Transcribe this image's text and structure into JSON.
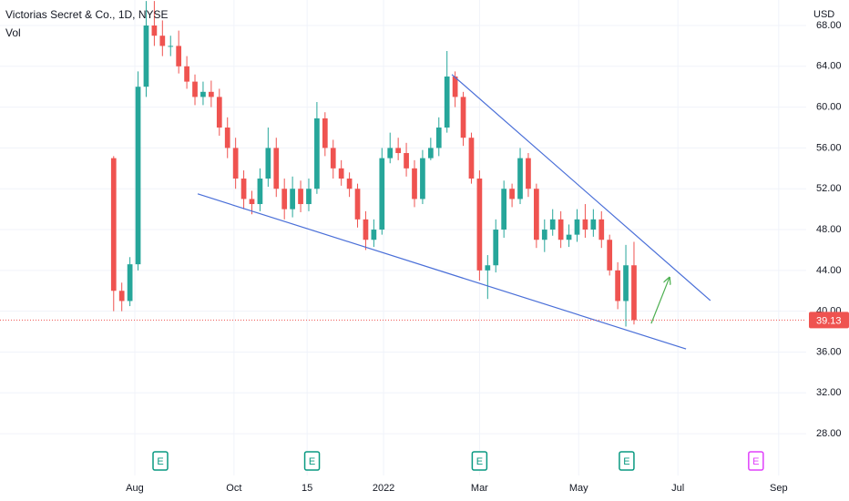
{
  "chart_data": {
    "type": "candlestick",
    "title": "Victorias Secret & Co., 1D, NYSE",
    "subtitle": "Vol",
    "currency": "USD",
    "up_color": "#26a69a",
    "down_color": "#ef5350",
    "grid": true,
    "x": [
      18,
      23,
      28,
      33,
      38,
      43,
      48,
      53,
      58,
      63,
      68,
      73,
      78,
      83,
      88,
      93,
      98,
      103,
      108,
      113,
      118,
      123,
      128,
      133,
      138,
      143,
      148,
      153,
      158,
      163,
      168,
      173,
      178,
      183,
      188,
      193,
      198,
      203,
      208,
      213,
      218,
      223,
      228,
      233,
      238,
      243,
      248,
      253,
      258,
      263,
      268,
      273,
      278,
      283,
      288,
      293,
      298,
      303,
      308,
      313,
      318,
      323,
      328,
      333,
      338
    ],
    "open": [
      55,
      42,
      41,
      44.6,
      62,
      68,
      67,
      66,
      66,
      64,
      62.5,
      61,
      61.5,
      61,
      58,
      56,
      53,
      51,
      50.5,
      53,
      56,
      52,
      50,
      52,
      50.5,
      52,
      58.9,
      56,
      54,
      53,
      52,
      49,
      47,
      48,
      55,
      56,
      55.5,
      54,
      51,
      55,
      56,
      58,
      63,
      61,
      57,
      53,
      44,
      44.5,
      48,
      52,
      51,
      55,
      52,
      47,
      48,
      49,
      47,
      47.5,
      49,
      48,
      49,
      47,
      44,
      41,
      44.5
    ],
    "high": [
      55.2,
      42.8,
      45.3,
      63.5,
      70.4,
      70.4,
      68.5,
      67,
      67.5,
      65,
      63.2,
      62.5,
      62.6,
      61.8,
      59,
      57,
      53.8,
      51.8,
      54,
      58,
      57,
      53,
      53.2,
      52.8,
      53,
      60.5,
      59.5,
      56.8,
      54.8,
      53.6,
      52.5,
      49.8,
      49,
      56,
      57.5,
      57,
      56.5,
      54.8,
      55.8,
      57,
      59,
      65.5,
      63.5,
      61.5,
      57.5,
      53.8,
      45.5,
      49,
      52.8,
      52.5,
      56,
      55.5,
      52.5,
      49,
      50,
      49.8,
      48.5,
      50,
      50.5,
      50,
      49.8,
      47.5,
      44.8,
      46.5,
      46.8
    ],
    "low": [
      40,
      40,
      40.5,
      44,
      61,
      66,
      65,
      65,
      63.3,
      61.8,
      60.2,
      60.2,
      60,
      57.2,
      55,
      52,
      50,
      49.5,
      49.8,
      52.2,
      51.2,
      49,
      49.2,
      49.7,
      49.8,
      51.5,
      55.2,
      53,
      52.3,
      51.2,
      48.2,
      46,
      46.3,
      47.5,
      54.5,
      54.8,
      53.2,
      50.2,
      50.5,
      54.8,
      55.2,
      57.5,
      60,
      56.2,
      52.5,
      43,
      41.2,
      43.8,
      47.2,
      50.2,
      50.5,
      51.2,
      46.2,
      45.8,
      47.4,
      46.2,
      46.3,
      46.8,
      47.2,
      47.3,
      46.2,
      43.5,
      40.2,
      38.5,
      38.7
    ],
    "close": [
      42,
      41,
      44.6,
      62,
      68,
      67,
      66,
      66,
      64,
      62.5,
      61,
      61.5,
      61,
      58,
      56,
      53,
      51,
      50.5,
      53,
      56,
      52,
      50,
      52,
      50.5,
      52,
      58.9,
      56,
      54,
      53,
      52,
      49,
      47,
      48,
      55,
      56,
      55.5,
      54,
      51,
      55,
      56,
      58,
      63,
      61,
      57,
      53,
      44,
      44.5,
      48,
      52,
      51,
      55,
      52,
      47,
      48,
      49,
      47,
      47.5,
      49,
      48,
      49,
      47,
      44,
      41,
      44.5,
      39.13
    ],
    "last_price": 39.13,
    "xlim": [
      -51.9,
      443.9
    ],
    "ylim": [
      23.9,
      70.5
    ],
    "xticks": [
      {
        "value": 31,
        "label": "Aug"
      },
      {
        "value": 92,
        "label": "Oct"
      },
      {
        "value": 137,
        "label": "15"
      },
      {
        "value": 184,
        "label": "2022"
      },
      {
        "value": 243,
        "label": "Mar"
      },
      {
        "value": 304,
        "label": "May"
      },
      {
        "value": 365,
        "label": "Jul"
      },
      {
        "value": 427,
        "label": "Sep"
      }
    ],
    "yticks": [
      {
        "value": 28,
        "label": "28.00"
      },
      {
        "value": 32,
        "label": "32.00"
      },
      {
        "value": 36,
        "label": "36.00"
      },
      {
        "value": 40,
        "label": "40.00"
      },
      {
        "value": 44,
        "label": "44.00"
      },
      {
        "value": 48,
        "label": "48.00"
      },
      {
        "value": 52,
        "label": "52.00"
      },
      {
        "value": 56,
        "label": "56.00"
      },
      {
        "value": 60,
        "label": "60.00"
      },
      {
        "value": 64,
        "label": "64.00"
      },
      {
        "value": 68,
        "label": "68.00"
      }
    ],
    "drawings": [
      {
        "x": [
          226,
          385
        ],
        "y": [
          63.2,
          41.05
        ],
        "color": "#4a6fd8"
      },
      {
        "x": [
          69.7,
          370
        ],
        "y": [
          51.5,
          36.3
        ],
        "color": "#4a6fd8"
      },
      {
        "x": [
          348.6,
          359.8
        ],
        "y": [
          38.8,
          43.3
        ],
        "color": "#4caf50",
        "arrow": true
      }
    ],
    "events": [
      {
        "x": 46.7,
        "label": "E",
        "color": "#089981"
      },
      {
        "x": 140,
        "label": "E",
        "color": "#089981"
      },
      {
        "x": 243,
        "label": "E",
        "color": "#089981"
      },
      {
        "x": 333.5,
        "label": "E",
        "color": "#089981"
      },
      {
        "x": 413,
        "label": "E",
        "color": "#e040fb"
      }
    ]
  }
}
